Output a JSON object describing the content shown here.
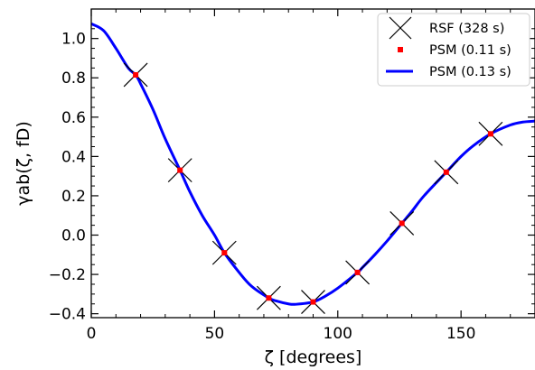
{
  "chart_data": {
    "type": "line",
    "xlabel": "ζ [degrees]",
    "ylabel": "γab(ζ, fD)",
    "xlim": [
      0,
      180
    ],
    "ylim": [
      -0.42,
      1.15
    ],
    "xticks": [
      0,
      50,
      100,
      150
    ],
    "yticks": [
      -0.4,
      -0.2,
      0.0,
      0.2,
      0.4,
      0.6,
      0.8,
      1.0
    ],
    "xtick_labels": [
      "0",
      "50",
      "100",
      "150"
    ],
    "ytick_labels": [
      "−0.4",
      "−0.2",
      "0.0",
      "0.2",
      "0.4",
      "0.6",
      "0.8",
      "1.0"
    ],
    "grid": false,
    "legend_position": "top-right",
    "series": [
      {
        "name": "RSF (328 s)",
        "kind": "scatter",
        "marker": "x",
        "color": "#000000",
        "x": [
          18,
          36,
          54,
          72,
          90,
          108,
          126,
          144,
          162
        ],
        "y": [
          0.815,
          0.33,
          -0.09,
          -0.32,
          -0.34,
          -0.19,
          0.06,
          0.32,
          0.515
        ]
      },
      {
        "name": "PSM (0.11 s)",
        "kind": "scatter",
        "marker": "square",
        "color": "#ff0000",
        "x": [
          18,
          36,
          54,
          72,
          90,
          108,
          126,
          144,
          162
        ],
        "y": [
          0.815,
          0.33,
          -0.09,
          -0.32,
          -0.34,
          -0.19,
          0.06,
          0.32,
          0.515
        ]
      },
      {
        "name": "PSM (0.13 s)",
        "kind": "line",
        "color": "#0000ff",
        "x": [
          0,
          5,
          10,
          15,
          18,
          20,
          25,
          30,
          36,
          40,
          45,
          50,
          54,
          60,
          65,
          72,
          75,
          80,
          83,
          90,
          95,
          100,
          108,
          110,
          115,
          120,
          126,
          130,
          135,
          144,
          150,
          155,
          162,
          170,
          175,
          180
        ],
        "y": [
          1.075,
          1.04,
          0.95,
          0.85,
          0.815,
          0.77,
          0.64,
          0.49,
          0.33,
          0.22,
          0.1,
          0.0,
          -0.09,
          -0.19,
          -0.26,
          -0.32,
          -0.335,
          -0.35,
          -0.352,
          -0.34,
          -0.31,
          -0.27,
          -0.19,
          -0.165,
          -0.1,
          -0.03,
          0.06,
          0.12,
          0.2,
          0.32,
          0.4,
          0.455,
          0.515,
          0.56,
          0.575,
          0.58
        ]
      }
    ]
  }
}
